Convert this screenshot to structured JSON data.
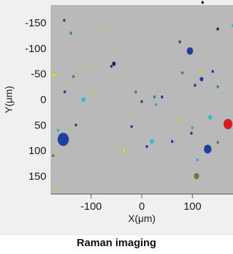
{
  "caption": "Raman imaging",
  "chart_data": {
    "type": "scatter",
    "title": "",
    "xlabel": "X(μm)",
    "ylabel": "Y(μm)",
    "xlim": [
      -180,
      180
    ],
    "ylim": [
      -185,
      185
    ],
    "y_inverted": true,
    "x_ticks": [
      -100,
      0,
      100
    ],
    "y_ticks": [
      -150,
      -100,
      -50,
      0,
      50,
      100,
      150
    ],
    "plot_background": "#b9b9b9",
    "grid": false,
    "legend": "none",
    "series": [
      {
        "color": "#1a3fa6",
        "points": [
          {
            "x": -155,
            "y": 78,
            "size": 9
          },
          {
            "x": 95,
            "y": -95,
            "size": 5
          },
          {
            "x": 130,
            "y": 97,
            "size": 6
          },
          {
            "x": 118,
            "y": -40,
            "size": 3
          },
          {
            "x": -60,
            "y": -65,
            "size": 2
          },
          {
            "x": 140,
            "y": -55,
            "size": 2
          },
          {
            "x": 170,
            "y": 45,
            "size": 2
          },
          {
            "x": -20,
            "y": 53,
            "size": 2
          },
          {
            "x": 40,
            "y": -5,
            "size": 2
          },
          {
            "x": 10,
            "y": 92,
            "size": 2
          },
          {
            "x": 98,
            "y": 66,
            "size": 2
          },
          {
            "x": -152,
            "y": -15,
            "size": 2
          },
          {
            "x": 60,
            "y": 82,
            "size": 2
          },
          {
            "x": 105,
            "y": -28,
            "size": 2
          }
        ]
      },
      {
        "color": "#1f8fa0",
        "points": [
          {
            "x": -140,
            "y": -130,
            "size": 2
          },
          {
            "x": 80,
            "y": -52,
            "size": 2
          },
          {
            "x": 150,
            "y": -25,
            "size": 2
          },
          {
            "x": 25,
            "y": -5,
            "size": 2
          },
          {
            "x": -12,
            "y": -15,
            "size": 2
          },
          {
            "x": -135,
            "y": -45,
            "size": 2
          }
        ]
      },
      {
        "color": "#18c7d6",
        "points": [
          {
            "x": -115,
            "y": 0,
            "size": 3
          },
          {
            "x": 135,
            "y": 35,
            "size": 3
          },
          {
            "x": -165,
            "y": 60,
            "size": 2
          },
          {
            "x": 110,
            "y": 118,
            "size": 2
          },
          {
            "x": 20,
            "y": 82,
            "size": 3
          },
          {
            "x": 28,
            "y": 10,
            "size": 2
          },
          {
            "x": 180,
            "y": -145,
            "size": 2
          },
          {
            "x": 100,
            "y": 55,
            "size": 2
          }
        ]
      },
      {
        "color": "#d8d83a",
        "points": [
          {
            "x": -35,
            "y": 100,
            "size": 3
          },
          {
            "x": -173,
            "y": -48,
            "size": 3
          },
          {
            "x": -130,
            "y": -48,
            "size": 2
          },
          {
            "x": -95,
            "y": -12,
            "size": 2
          },
          {
            "x": -70,
            "y": -140,
            "size": 2
          },
          {
            "x": -100,
            "y": -63,
            "size": 2
          },
          {
            "x": 70,
            "y": 40,
            "size": 2
          },
          {
            "x": -165,
            "y": 175,
            "size": 2
          },
          {
            "x": -148,
            "y": -28,
            "size": 2
          },
          {
            "x": 120,
            "y": -55,
            "size": 2
          }
        ]
      },
      {
        "color": "#e01818",
        "points": [
          {
            "x": 170,
            "y": 48,
            "size": 7
          }
        ]
      },
      {
        "color": "#2a5a3a",
        "points": [
          {
            "x": -153,
            "y": -155,
            "size": 2
          },
          {
            "x": -130,
            "y": 50,
            "size": 2
          },
          {
            "x": 0,
            "y": 4,
            "size": 2
          },
          {
            "x": 75,
            "y": -113,
            "size": 2
          }
        ]
      },
      {
        "color": "#7a7a34",
        "points": [
          {
            "x": 108,
            "y": 150,
            "size": 4
          },
          {
            "x": -175,
            "y": 110,
            "size": 2
          },
          {
            "x": 150,
            "y": 84,
            "size": 2
          }
        ]
      },
      {
        "color": "#14215e",
        "points": [
          {
            "x": -55,
            "y": -70,
            "size": 3
          },
          {
            "x": 150,
            "y": -138,
            "size": 2
          },
          {
            "x": 120,
            "y": -190,
            "size": 2
          }
        ]
      }
    ]
  }
}
